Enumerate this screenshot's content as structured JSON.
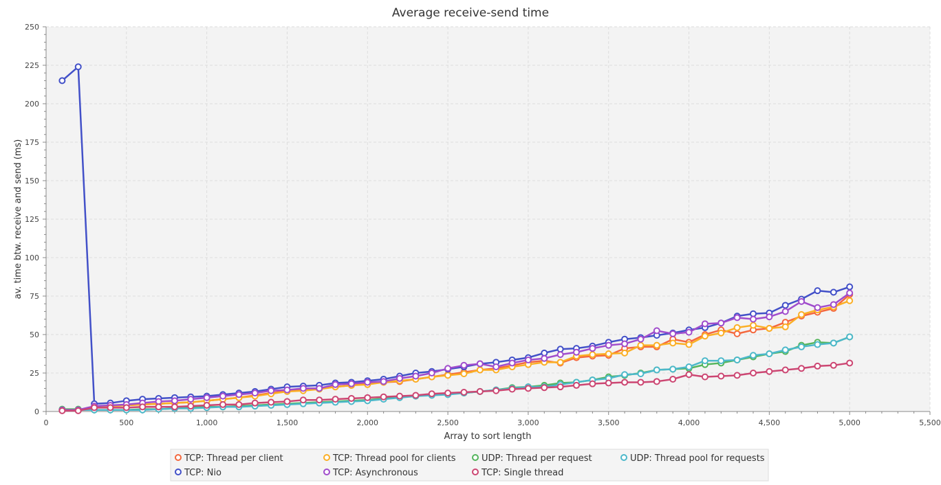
{
  "chart_data": {
    "type": "line",
    "title": "Average receive-send time",
    "xlabel": "Array to sort length",
    "ylabel": "av. time btw. receive and send (ms)",
    "xlim": [
      0,
      5500
    ],
    "ylim": [
      0,
      250
    ],
    "x_ticks": [
      0,
      500,
      1000,
      1500,
      2000,
      2500,
      3000,
      3500,
      4000,
      4500,
      5000,
      5500
    ],
    "x_tick_labels": [
      "0",
      "500",
      "1,000",
      "1,500",
      "2,000",
      "2,500",
      "3,000",
      "3,500",
      "4,000",
      "4,500",
      "5,000",
      "5,500"
    ],
    "y_ticks": [
      0,
      25,
      50,
      75,
      100,
      125,
      150,
      175,
      200,
      225,
      250
    ],
    "y_tick_labels": [
      "0",
      "25",
      "50",
      "75",
      "100",
      "125",
      "150",
      "175",
      "200",
      "225",
      "250"
    ],
    "grid": true,
    "legend_position": "bottom",
    "x": [
      100,
      200,
      300,
      400,
      500,
      600,
      700,
      800,
      900,
      1000,
      1100,
      1200,
      1300,
      1400,
      1500,
      1600,
      1700,
      1800,
      1900,
      2000,
      2100,
      2200,
      2300,
      2400,
      2500,
      2600,
      2700,
      2800,
      2900,
      3000,
      3100,
      3200,
      3300,
      3400,
      3500,
      3600,
      3700,
      3800,
      3900,
      4000,
      4100,
      4200,
      4300,
      4400,
      4500,
      4600,
      4700,
      4800,
      4900,
      5000
    ],
    "series": [
      {
        "name": "TCP: Thread per client",
        "color": "#f4683e",
        "values": [
          1,
          1,
          3,
          3.5,
          4,
          4.5,
          5,
          5.5,
          6,
          7,
          8,
          9,
          10.5,
          12,
          13.5,
          14,
          15,
          16,
          17,
          18,
          19,
          19.5,
          21,
          22.5,
          24,
          25.5,
          27,
          28,
          30,
          32,
          33,
          31.5,
          35,
          36,
          36.5,
          41,
          42,
          42,
          47,
          45,
          50,
          53,
          50.5,
          53,
          54,
          58,
          62,
          64.5,
          67,
          76
        ]
      },
      {
        "name": "TCP: Thread pool for clients",
        "color": "#fbaf25",
        "values": [
          1,
          1,
          3,
          3.5,
          4,
          4.5,
          5,
          5.5,
          6,
          7,
          8,
          9,
          10,
          11.5,
          13,
          13.5,
          14.5,
          16,
          17,
          17.5,
          19,
          20,
          21,
          22.5,
          23.5,
          24.5,
          27,
          27,
          29,
          30.5,
          32,
          32,
          36,
          37,
          37.5,
          38,
          43,
          43,
          44.5,
          43.5,
          49,
          51,
          54.5,
          56,
          54,
          55,
          63,
          66,
          68,
          72
        ]
      },
      {
        "name": "UDP: Thread per request",
        "color": "#54b55c",
        "values": [
          1.5,
          1.5,
          1,
          1,
          1,
          1.5,
          1.5,
          2,
          2.5,
          3,
          3,
          3.5,
          4,
          4.5,
          5,
          5.5,
          6,
          6.5,
          7,
          7.5,
          8.5,
          9.5,
          10,
          11,
          11.5,
          12,
          13,
          14,
          15.5,
          16,
          17,
          18.5,
          19,
          20.5,
          22.5,
          23.5,
          25,
          27,
          27.5,
          28,
          30.5,
          31.5,
          33.5,
          35.5,
          37.5,
          39,
          43,
          45,
          44.5,
          48.5
        ]
      },
      {
        "name": "UDP: Thread pool for requests",
        "color": "#4cb8ca",
        "values": [
          1,
          1,
          1,
          1,
          1,
          1,
          1.5,
          2,
          2,
          2.5,
          3,
          3,
          3.5,
          4,
          4.5,
          5,
          5.5,
          6,
          6.5,
          7,
          8,
          9,
          10,
          10.5,
          11,
          12,
          13,
          14,
          15,
          16,
          16,
          17.5,
          19,
          20.5,
          21.5,
          24,
          24.5,
          27,
          27.5,
          29,
          33,
          33,
          33.5,
          36.5,
          37.5,
          40,
          42,
          43.5,
          44.5,
          48.5
        ]
      },
      {
        "name": "TCP: Nio",
        "color": "#4250c8",
        "values": [
          215,
          224,
          5,
          5.5,
          7,
          8,
          8.5,
          9,
          9.5,
          10,
          11,
          12,
          13,
          14.5,
          16,
          16.5,
          17,
          18.5,
          19,
          20,
          21,
          23,
          25,
          26,
          27.5,
          29,
          31,
          32,
          33.5,
          35,
          38,
          40.5,
          41,
          42.5,
          45,
          47,
          48,
          49.5,
          51,
          53,
          54.5,
          57.5,
          62,
          63.5,
          64,
          69,
          73,
          78.5,
          77.5,
          81
        ]
      },
      {
        "name": "TCP: Asynchronous",
        "color": "#a04ccc",
        "values": [
          1,
          1,
          3.5,
          4,
          4.5,
          5.5,
          6.5,
          7,
          8,
          9,
          10,
          11,
          12,
          13.5,
          14,
          15,
          15,
          17.5,
          18,
          19,
          19.5,
          21.5,
          23,
          25,
          28,
          30,
          31,
          29,
          31.5,
          33.5,
          34.5,
          37,
          38.5,
          41,
          43,
          44,
          47,
          52.5,
          50.5,
          51.5,
          57,
          57.5,
          61,
          60,
          61.5,
          65,
          71.5,
          67.5,
          69.5,
          77
        ]
      },
      {
        "name": "TCP: Single thread",
        "color": "#cc4672",
        "values": [
          0.5,
          0.5,
          2.5,
          2.5,
          2.5,
          3,
          3,
          3,
          3.5,
          4,
          4.5,
          4.5,
          5.5,
          6,
          6.5,
          7.5,
          7.5,
          8,
          8.5,
          9,
          9.5,
          10,
          10.5,
          11.5,
          12,
          12.5,
          13,
          13.5,
          14.5,
          15,
          15.5,
          16,
          17,
          18,
          18.5,
          19,
          19,
          19.5,
          21,
          24,
          22.5,
          23,
          23.5,
          25,
          26,
          27,
          28,
          29.5,
          30,
          31.5
        ]
      }
    ]
  }
}
